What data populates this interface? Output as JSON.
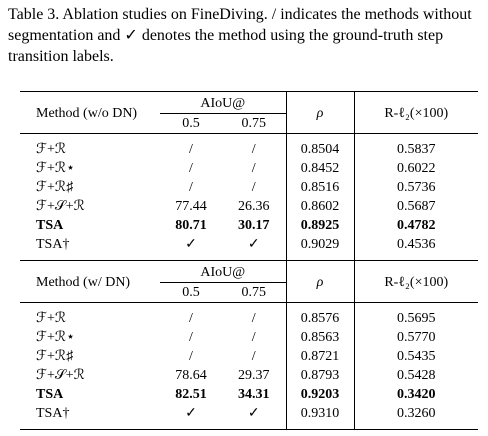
{
  "caption": "Table 3. Ablation studies on FineDiving. / indicates the methods without segmentation and ✓ denotes the method using the ground-truth step transition labels.",
  "sections": [
    {
      "header": {
        "method": "Method (w/o DN)",
        "aiou": "AIoU@",
        "thresholds": [
          "0.5",
          "0.75"
        ],
        "rho": "ρ",
        "r": "R-ℓ₂(×100)"
      },
      "rows": [
        {
          "cells": [
            "ℱ+ℛ",
            "/",
            "/",
            "0.8504",
            "0.5837"
          ],
          "bold": false
        },
        {
          "cells": [
            "ℱ+ℛ⋆",
            "/",
            "/",
            "0.8452",
            "0.6022"
          ],
          "bold": false
        },
        {
          "cells": [
            "ℱ+ℛ♯",
            "/",
            "/",
            "0.8516",
            "0.5736"
          ],
          "bold": false
        },
        {
          "cells": [
            "ℱ+𝒮+ℛ",
            "77.44",
            "26.36",
            "0.8602",
            "0.5687"
          ],
          "bold": false
        },
        {
          "cells": [
            "TSA",
            "80.71",
            "30.17",
            "0.8925",
            "0.4782"
          ],
          "bold": true
        },
        {
          "cells": [
            "TSA†",
            "✓",
            "✓",
            "0.9029",
            "0.4536"
          ],
          "bold": false
        }
      ]
    },
    {
      "header": {
        "method": "Method (w/ DN)",
        "aiou": "AIoU@",
        "thresholds": [
          "0.5",
          "0.75"
        ],
        "rho": "ρ",
        "r": "R-ℓ₂(×100)"
      },
      "rows": [
        {
          "cells": [
            "ℱ+ℛ",
            "/",
            "/",
            "0.8576",
            "0.5695"
          ],
          "bold": false
        },
        {
          "cells": [
            "ℱ+ℛ⋆",
            "/",
            "/",
            "0.8563",
            "0.5770"
          ],
          "bold": false
        },
        {
          "cells": [
            "ℱ+ℛ♯",
            "/",
            "/",
            "0.8721",
            "0.5435"
          ],
          "bold": false
        },
        {
          "cells": [
            "ℱ+𝒮+ℛ",
            "78.64",
            "29.37",
            "0.8793",
            "0.5428"
          ],
          "bold": false
        },
        {
          "cells": [
            "TSA",
            "82.51",
            "34.31",
            "0.9203",
            "0.3420"
          ],
          "bold": true
        },
        {
          "cells": [
            "TSA†",
            "✓",
            "✓",
            "0.9310",
            "0.3260"
          ],
          "bold": false
        }
      ]
    }
  ]
}
